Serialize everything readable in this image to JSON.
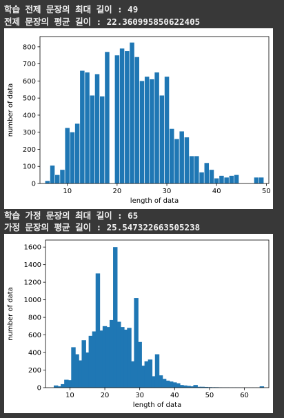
{
  "output_1": {
    "line1": "학습 전제 문장의 최대 길이 : 49",
    "line2": "전제 문장의 평균 길이 : 22.360995850622405"
  },
  "output_2": {
    "line1": "학습 가정 문장의 최대 길이 : 65",
    "line2": "가정 문장의 평균 길이 : 25.547322663505238"
  },
  "chart_data": [
    {
      "type": "bar",
      "title": "",
      "xlabel": "length of data",
      "ylabel": "number of data",
      "xlim": [
        4.5,
        50.5
      ],
      "ylim": [
        0,
        860
      ],
      "xticks": [
        10,
        20,
        30,
        40,
        50
      ],
      "yticks": [
        0,
        100,
        200,
        300,
        400,
        500,
        600,
        700,
        800
      ],
      "bin_width": 0.9,
      "bar_color": "#1f77b4",
      "x": [
        6,
        7,
        8,
        9,
        10,
        11,
        12,
        13,
        14,
        15,
        16,
        17,
        18,
        19,
        20,
        21,
        22,
        23,
        24,
        25,
        26,
        27,
        28,
        29,
        30,
        31,
        32,
        33,
        34,
        35,
        36,
        37,
        38,
        39,
        40,
        41,
        42,
        43,
        44,
        48,
        49
      ],
      "values": [
        15,
        105,
        50,
        80,
        325,
        300,
        350,
        660,
        650,
        515,
        640,
        510,
        770,
        0,
        750,
        790,
        775,
        825,
        740,
        600,
        625,
        610,
        650,
        515,
        625,
        320,
        260,
        305,
        270,
        160,
        160,
        65,
        120,
        80,
        30,
        45,
        35,
        45,
        50,
        35,
        35
      ]
    },
    {
      "type": "bar",
      "title": "",
      "xlabel": "length of data",
      "ylabel": "number of data",
      "xlim": [
        3,
        67
      ],
      "ylim": [
        0,
        1680
      ],
      "xticks": [
        10,
        20,
        30,
        40,
        50,
        60
      ],
      "yticks": [
        0,
        200,
        400,
        600,
        800,
        1000,
        1200,
        1400,
        1600
      ],
      "bin_width": 1.27,
      "bar_color": "#1f77b4",
      "x": [
        6,
        7,
        8,
        9,
        10,
        11,
        12,
        13,
        14,
        15,
        16,
        17,
        18,
        19,
        20,
        21,
        22,
        23,
        24,
        25,
        26,
        27,
        28,
        29,
        30,
        31,
        32,
        33,
        34,
        35,
        36,
        37,
        38,
        39,
        40,
        41,
        42,
        43,
        44,
        45,
        46,
        47,
        48,
        49,
        50,
        51,
        52,
        53,
        54,
        55,
        56,
        57,
        58,
        59,
        60,
        61,
        62,
        63,
        64,
        65
      ],
      "values": [
        25,
        15,
        40,
        90,
        85,
        460,
        380,
        310,
        540,
        400,
        590,
        640,
        1300,
        650,
        700,
        690,
        770,
        1600,
        750,
        690,
        660,
        680,
        300,
        1020,
        520,
        250,
        300,
        320,
        130,
        380,
        140,
        100,
        80,
        70,
        60,
        50,
        30,
        25,
        20,
        15,
        30,
        10,
        10,
        8,
        6,
        5,
        5,
        4,
        3,
        3,
        2,
        2,
        2,
        1,
        1,
        1,
        1,
        1,
        1,
        15
      ]
    }
  ]
}
